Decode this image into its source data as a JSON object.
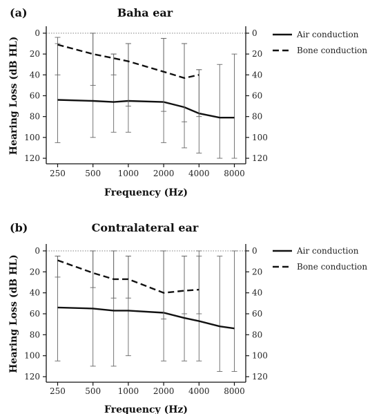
{
  "chart_data": [
    {
      "type": "line",
      "panel": "(a)",
      "title": "Baha ear",
      "xlabel": "Frequency (Hz)",
      "ylabel": "Hearing Loss (dB HL)",
      "x_scale": "log",
      "xticks": [
        250,
        500,
        1000,
        2000,
        4000,
        8000
      ],
      "yticks": [
        0,
        20,
        40,
        60,
        80,
        100,
        120
      ],
      "ylim": [
        0,
        120
      ],
      "y_inverted": true,
      "grid": false,
      "legend": "top-right",
      "series": [
        {
          "name": "Air conduction",
          "style": "solid",
          "x": [
            250,
            500,
            750,
            1000,
            2000,
            3000,
            4000,
            6000,
            8000
          ],
          "y": [
            64,
            65,
            66,
            65,
            66,
            71,
            77,
            81,
            81
          ],
          "err_low": [
            105,
            100,
            95,
            95,
            105,
            110,
            115,
            120,
            120
          ],
          "err_high": [
            10,
            0,
            20,
            10,
            5,
            10,
            35,
            30,
            20
          ]
        },
        {
          "name": "Bone conduction",
          "style": "dashed",
          "x": [
            250,
            500,
            750,
            1000,
            2000,
            3000,
            4000
          ],
          "y": [
            11,
            20,
            24,
            27,
            37,
            43,
            40
          ],
          "err_low": [
            40,
            50,
            40,
            70,
            75,
            85,
            80
          ],
          "err_high": [
            4,
            0,
            20,
            10,
            5,
            10,
            35
          ]
        }
      ]
    },
    {
      "type": "line",
      "panel": "(b)",
      "title": "Contralateral ear",
      "xlabel": "Frequency (Hz)",
      "ylabel": "Hearing Loss (dB HL)",
      "x_scale": "log",
      "xticks": [
        250,
        500,
        1000,
        2000,
        4000,
        8000
      ],
      "yticks": [
        0,
        20,
        40,
        60,
        80,
        100,
        120
      ],
      "ylim": [
        0,
        120
      ],
      "y_inverted": true,
      "grid": false,
      "legend": "top-right",
      "series": [
        {
          "name": "Air conduction",
          "style": "solid",
          "x": [
            250,
            500,
            750,
            1000,
            2000,
            3000,
            4000,
            6000,
            8000
          ],
          "y": [
            54,
            55,
            57,
            57,
            59,
            64,
            67,
            72,
            74
          ],
          "err_low": [
            105,
            110,
            110,
            100,
            105,
            105,
            105,
            115,
            115
          ],
          "err_high": [
            5,
            0,
            0,
            5,
            0,
            5,
            0,
            5,
            0
          ]
        },
        {
          "name": "Bone conduction",
          "style": "dashed",
          "x": [
            250,
            500,
            750,
            1000,
            2000,
            3000,
            4000
          ],
          "y": [
            9,
            21,
            27,
            27,
            40,
            38,
            37
          ],
          "err_low": [
            25,
            35,
            45,
            45,
            65,
            60,
            60
          ],
          "err_high": [
            5,
            0,
            0,
            5,
            0,
            5,
            5
          ]
        }
      ]
    }
  ]
}
